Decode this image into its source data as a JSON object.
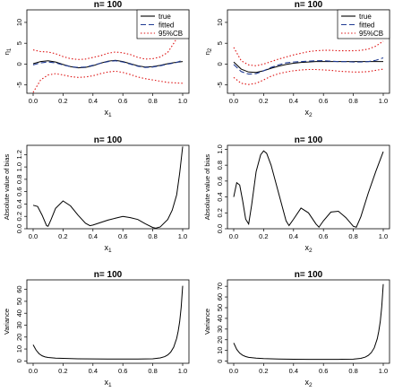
{
  "chart_data": [
    {
      "type": "line",
      "title": "n= 100",
      "xlabel": "x",
      "xlabel_sub": "1",
      "ylabel": "η",
      "ylabel_sub": "1",
      "xlim": [
        0,
        1
      ],
      "ylim": [
        -7,
        13
      ],
      "xticks": [
        0.0,
        0.2,
        0.4,
        0.6,
        0.8,
        1.0
      ],
      "xtick_labels": [
        "0.0",
        "0.2",
        "0.4",
        "0.6",
        "0.8",
        "1.0"
      ],
      "yticks": [
        -5,
        0,
        5,
        10
      ],
      "ytick_labels": [
        "-5",
        "0",
        "5",
        "10"
      ],
      "legend": {
        "position": "top-right",
        "entries": [
          "true",
          "fitted",
          "95%CB"
        ]
      },
      "series": [
        {
          "name": "true",
          "style": "solid",
          "color": "#000000",
          "x": [
            0,
            0.05,
            0.1,
            0.15,
            0.2,
            0.25,
            0.3,
            0.35,
            0.4,
            0.45,
            0.5,
            0.55,
            0.6,
            0.65,
            0.7,
            0.75,
            0.8,
            0.85,
            0.9,
            0.95,
            1.0
          ],
          "y": [
            0.1,
            0.6,
            0.8,
            0.5,
            -0.1,
            -0.6,
            -0.9,
            -0.8,
            -0.4,
            0.2,
            0.7,
            0.9,
            0.6,
            0.1,
            -0.4,
            -0.7,
            -0.6,
            -0.3,
            0.1,
            0.4,
            0.6
          ]
        },
        {
          "name": "fitted",
          "style": "dashed",
          "color": "#1f3a93",
          "x": [
            0,
            0.05,
            0.1,
            0.15,
            0.2,
            0.25,
            0.3,
            0.35,
            0.4,
            0.45,
            0.5,
            0.55,
            0.6,
            0.65,
            0.7,
            0.75,
            0.8,
            0.85,
            0.9,
            0.95,
            1.0
          ],
          "y": [
            -0.2,
            0.3,
            0.5,
            0.3,
            -0.2,
            -0.6,
            -0.8,
            -0.7,
            -0.3,
            0.2,
            0.6,
            0.8,
            0.5,
            0.0,
            -0.5,
            -0.8,
            -0.7,
            -0.4,
            0.0,
            0.3,
            0.9
          ]
        },
        {
          "name": "95%CB",
          "style": "dotted",
          "color": "#dd1111",
          "x": [
            0,
            0.05,
            0.1,
            0.15,
            0.2,
            0.25,
            0.3,
            0.35,
            0.4,
            0.45,
            0.5,
            0.55,
            0.6,
            0.65,
            0.7,
            0.75,
            0.8,
            0.85,
            0.9,
            0.95,
            1.0
          ],
          "y": [
            3.4,
            3.0,
            2.9,
            2.5,
            1.8,
            1.3,
            1.1,
            1.2,
            1.6,
            2.0,
            2.6,
            2.9,
            2.7,
            2.3,
            1.6,
            1.2,
            1.3,
            1.7,
            2.8,
            5.5,
            12.5
          ]
        },
        {
          "name": "95%CB",
          "style": "dotted",
          "color": "#dd1111",
          "x": [
            0,
            0.05,
            0.1,
            0.15,
            0.2,
            0.25,
            0.3,
            0.35,
            0.4,
            0.45,
            0.5,
            0.55,
            0.6,
            0.65,
            0.7,
            0.75,
            0.8,
            0.85,
            0.9,
            0.95,
            1.0
          ],
          "y": [
            -6.8,
            -3.8,
            -2.6,
            -2.3,
            -2.6,
            -3.0,
            -3.2,
            -3.1,
            -2.8,
            -2.3,
            -1.9,
            -1.7,
            -2.0,
            -2.5,
            -3.1,
            -3.5,
            -3.8,
            -4.1,
            -4.4,
            -4.5,
            -4.6
          ]
        }
      ]
    },
    {
      "type": "line",
      "title": "n= 100",
      "xlabel": "x",
      "xlabel_sub": "2",
      "ylabel": "η",
      "ylabel_sub": "2",
      "xlim": [
        0,
        1
      ],
      "ylim": [
        -7,
        13
      ],
      "xticks": [
        0.0,
        0.2,
        0.4,
        0.6,
        0.8,
        1.0
      ],
      "xtick_labels": [
        "0.0",
        "0.2",
        "0.4",
        "0.6",
        "0.8",
        "1.0"
      ],
      "yticks": [
        -5,
        0,
        5,
        10
      ],
      "ytick_labels": [
        "-5",
        "0",
        "5",
        "10"
      ],
      "legend": {
        "position": "top-right",
        "entries": [
          "true",
          "fitted",
          "95%CB"
        ]
      },
      "series": [
        {
          "name": "true",
          "style": "solid",
          "color": "#000000",
          "x": [
            0,
            0.05,
            0.1,
            0.15,
            0.2,
            0.25,
            0.3,
            0.35,
            0.4,
            0.45,
            0.5,
            0.55,
            0.6,
            0.65,
            0.7,
            0.75,
            0.8,
            0.85,
            0.9,
            0.95,
            1.0
          ],
          "y": [
            0.5,
            -1.2,
            -1.9,
            -2.0,
            -1.6,
            -1.0,
            -0.5,
            -0.1,
            0.2,
            0.4,
            0.5,
            0.6,
            0.6,
            0.6,
            0.6,
            0.6,
            0.6,
            0.6,
            0.6,
            0.6,
            0.6
          ]
        },
        {
          "name": "fitted",
          "style": "dashed",
          "color": "#1f3a93",
          "x": [
            0,
            0.05,
            0.1,
            0.15,
            0.2,
            0.25,
            0.3,
            0.35,
            0.4,
            0.45,
            0.5,
            0.55,
            0.6,
            0.65,
            0.7,
            0.75,
            0.8,
            0.85,
            0.9,
            0.95,
            1.0
          ],
          "y": [
            -0.1,
            -1.8,
            -2.4,
            -2.3,
            -1.6,
            -0.8,
            -0.2,
            0.3,
            0.5,
            0.6,
            0.7,
            0.8,
            0.8,
            0.7,
            0.6,
            0.6,
            0.5,
            0.5,
            0.6,
            0.9,
            1.5
          ]
        },
        {
          "name": "95%CB",
          "style": "dotted",
          "color": "#dd1111",
          "x": [
            0,
            0.05,
            0.1,
            0.15,
            0.2,
            0.25,
            0.3,
            0.35,
            0.4,
            0.45,
            0.5,
            0.55,
            0.6,
            0.65,
            0.7,
            0.75,
            0.8,
            0.85,
            0.9,
            0.95,
            1.0
          ],
          "y": [
            4.0,
            0.8,
            -0.2,
            -0.4,
            0.0,
            0.6,
            1.2,
            1.7,
            2.2,
            2.6,
            3.0,
            3.2,
            3.3,
            3.3,
            3.2,
            3.2,
            3.2,
            3.3,
            3.6,
            4.3,
            5.5
          ]
        },
        {
          "name": "95%CB",
          "style": "dotted",
          "color": "#dd1111",
          "x": [
            0,
            0.05,
            0.1,
            0.15,
            0.2,
            0.25,
            0.3,
            0.35,
            0.4,
            0.45,
            0.5,
            0.55,
            0.6,
            0.65,
            0.7,
            0.75,
            0.8,
            0.85,
            0.9,
            0.95,
            1.0
          ],
          "y": [
            -3.2,
            -4.6,
            -4.9,
            -4.6,
            -3.8,
            -2.9,
            -2.3,
            -1.9,
            -1.6,
            -1.4,
            -1.3,
            -1.3,
            -1.4,
            -1.5,
            -1.7,
            -1.8,
            -1.9,
            -1.9,
            -1.8,
            -1.5,
            -1.2
          ]
        }
      ]
    },
    {
      "type": "line",
      "title": "n= 100",
      "xlabel": "x",
      "xlabel_sub": "1",
      "ylabel": "Absolute value of bias",
      "ylabel_sub": "",
      "xlim": [
        0,
        1
      ],
      "ylim": [
        0,
        1.35
      ],
      "xticks": [
        0.0,
        0.2,
        0.4,
        0.6,
        0.8,
        1.0
      ],
      "xtick_labels": [
        "0.0",
        "0.2",
        "0.4",
        "0.6",
        "0.8",
        "1.0"
      ],
      "yticks": [
        0.0,
        0.2,
        0.4,
        0.6,
        0.8,
        1.0,
        1.2
      ],
      "ytick_labels": [
        "0.0",
        "0.2",
        "0.4",
        "0.6",
        "0.8",
        "1.0",
        "1.2"
      ],
      "series": [
        {
          "style": "solid",
          "color": "#000000",
          "x": [
            0,
            0.03,
            0.06,
            0.09,
            0.1,
            0.12,
            0.15,
            0.2,
            0.25,
            0.3,
            0.35,
            0.38,
            0.4,
            0.45,
            0.5,
            0.55,
            0.6,
            0.65,
            0.7,
            0.75,
            0.8,
            0.82,
            0.85,
            0.9,
            0.93,
            0.96,
            0.98,
            1.0
          ],
          "y": [
            0.38,
            0.36,
            0.22,
            0.05,
            0.04,
            0.15,
            0.33,
            0.45,
            0.37,
            0.22,
            0.09,
            0.05,
            0.06,
            0.1,
            0.14,
            0.17,
            0.2,
            0.18,
            0.15,
            0.08,
            0.02,
            0.01,
            0.03,
            0.15,
            0.3,
            0.55,
            0.9,
            1.33
          ]
        }
      ]
    },
    {
      "type": "line",
      "title": "n= 100",
      "xlabel": "x",
      "xlabel_sub": "2",
      "ylabel": "Absolute value of bias",
      "ylabel_sub": "",
      "xlim": [
        0,
        1
      ],
      "ylim": [
        0,
        1.05
      ],
      "xticks": [
        0.0,
        0.2,
        0.4,
        0.6,
        0.8,
        1.0
      ],
      "xtick_labels": [
        "0.0",
        "0.2",
        "0.4",
        "0.6",
        "0.8",
        "1.0"
      ],
      "yticks": [
        0.0,
        0.2,
        0.4,
        0.6,
        0.8,
        1.0
      ],
      "ytick_labels": [
        "0.0",
        "0.2",
        "0.4",
        "0.6",
        "0.8",
        "1.0"
      ],
      "series": [
        {
          "style": "solid",
          "color": "#000000",
          "x": [
            0,
            0.02,
            0.04,
            0.06,
            0.08,
            0.1,
            0.12,
            0.15,
            0.18,
            0.2,
            0.22,
            0.25,
            0.3,
            0.35,
            0.37,
            0.4,
            0.45,
            0.5,
            0.55,
            0.57,
            0.6,
            0.65,
            0.7,
            0.75,
            0.8,
            0.82,
            0.85,
            0.9,
            0.95,
            1.0
          ],
          "y": [
            0.4,
            0.58,
            0.55,
            0.35,
            0.12,
            0.06,
            0.3,
            0.72,
            0.93,
            0.98,
            0.95,
            0.8,
            0.45,
            0.1,
            0.04,
            0.12,
            0.26,
            0.2,
            0.06,
            0.02,
            0.1,
            0.21,
            0.22,
            0.14,
            0.03,
            0.02,
            0.15,
            0.45,
            0.72,
            0.97
          ]
        }
      ]
    },
    {
      "type": "line",
      "title": "n= 100",
      "xlabel": "x",
      "xlabel_sub": "1",
      "ylabel": "Variance",
      "ylabel_sub": "",
      "xlim": [
        0,
        1
      ],
      "ylim": [
        -2,
        68
      ],
      "xticks": [
        0.0,
        0.2,
        0.4,
        0.6,
        0.8,
        1.0
      ],
      "xtick_labels": [
        "0.0",
        "0.2",
        "0.4",
        "0.6",
        "0.8",
        "1.0"
      ],
      "yticks": [
        0,
        10,
        20,
        30,
        40,
        50,
        60
      ],
      "ytick_labels": [
        "0",
        "10",
        "20",
        "30",
        "40",
        "50",
        "60"
      ],
      "series": [
        {
          "style": "solid",
          "color": "#000000",
          "x": [
            0,
            0.02,
            0.04,
            0.06,
            0.08,
            0.1,
            0.15,
            0.2,
            0.3,
            0.4,
            0.5,
            0.6,
            0.7,
            0.8,
            0.85,
            0.88,
            0.9,
            0.92,
            0.94,
            0.96,
            0.97,
            0.98,
            0.99,
            1.0
          ],
          "y": [
            13.5,
            9.0,
            6.0,
            4.3,
            3.4,
            2.9,
            2.3,
            2.1,
            1.8,
            1.7,
            1.6,
            1.6,
            1.6,
            1.8,
            2.5,
            3.6,
            5.0,
            7.4,
            11.5,
            19.0,
            25.0,
            33.0,
            45.0,
            63.0
          ]
        }
      ]
    },
    {
      "type": "line",
      "title": "n= 100",
      "xlabel": "x",
      "xlabel_sub": "2",
      "ylabel": "Variance",
      "ylabel_sub": "",
      "xlim": [
        0,
        1
      ],
      "ylim": [
        -2,
        76
      ],
      "xticks": [
        0.0,
        0.2,
        0.4,
        0.6,
        0.8,
        1.0
      ],
      "xtick_labels": [
        "0.0",
        "0.2",
        "0.4",
        "0.6",
        "0.8",
        "1.0"
      ],
      "yticks": [
        0,
        10,
        20,
        30,
        40,
        50,
        60,
        70
      ],
      "ytick_labels": [
        "0",
        "10",
        "20",
        "30",
        "40",
        "50",
        "60",
        "70"
      ],
      "series": [
        {
          "style": "solid",
          "color": "#000000",
          "x": [
            0,
            0.02,
            0.04,
            0.06,
            0.08,
            0.1,
            0.15,
            0.2,
            0.3,
            0.4,
            0.5,
            0.6,
            0.7,
            0.8,
            0.85,
            0.88,
            0.9,
            0.92,
            0.94,
            0.96,
            0.97,
            0.98,
            0.99,
            1.0
          ],
          "y": [
            17.0,
            11.0,
            7.5,
            5.5,
            4.3,
            3.6,
            2.8,
            2.4,
            2.0,
            1.8,
            1.7,
            1.7,
            1.7,
            1.9,
            2.6,
            3.8,
            5.4,
            8.0,
            12.5,
            21.0,
            28.0,
            37.0,
            51.0,
            72.0
          ]
        }
      ]
    }
  ]
}
